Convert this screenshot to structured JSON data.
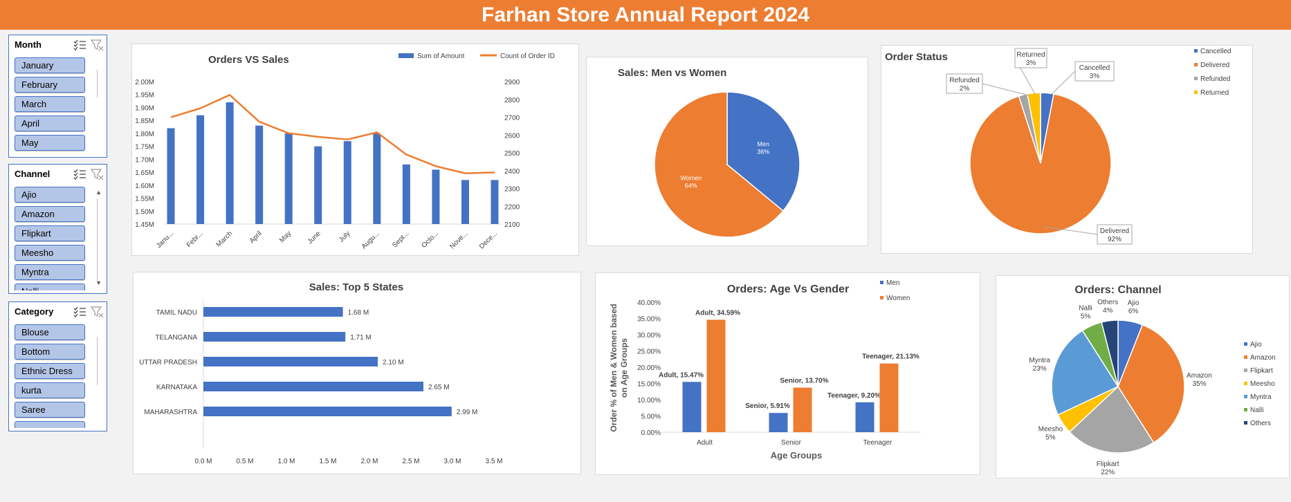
{
  "title": "Farhan Store Annual Report 2024",
  "colors": {
    "accent": "#ed7d31",
    "blue": "#4472c4",
    "gray": "#a5a5a5",
    "yellow": "#ffc000",
    "lightblue": "#5b9bd5",
    "green": "#70ad47",
    "navy": "#264478",
    "slicer_item": "#b4c6e7"
  },
  "slicers": [
    {
      "title": "Month",
      "items": [
        "January",
        "February",
        "March",
        "April",
        "May"
      ]
    },
    {
      "title": "Channel",
      "items": [
        "Ajio",
        "Amazon",
        "Flipkart",
        "Meesho",
        "Myntra",
        "Nalli"
      ]
    },
    {
      "title": "Category",
      "items": [
        "Blouse",
        "Bottom",
        "Ethnic Dress",
        "kurta",
        "Saree",
        ""
      ]
    }
  ],
  "chart_data": [
    {
      "type": "bar+line",
      "title": "Orders VS Sales",
      "categories": [
        "Janu...",
        "Febr...",
        "March",
        "April",
        "May",
        "June",
        "July",
        "Augu...",
        "Sept...",
        "Octo...",
        "Nove...",
        "Dece..."
      ],
      "series": [
        {
          "name": "Sum of Amount",
          "type": "bar",
          "axis": "left",
          "values": [
            1.82,
            1.87,
            1.92,
            1.83,
            1.8,
            1.75,
            1.77,
            1.8,
            1.68,
            1.66,
            1.62,
            1.62
          ]
        },
        {
          "name": "Count of Order ID",
          "type": "line",
          "axis": "right",
          "values": [
            2700,
            2750,
            2825,
            2675,
            2610,
            2590,
            2575,
            2615,
            2490,
            2425,
            2385,
            2390
          ]
        }
      ],
      "left_axis": {
        "ticks": [
          "2.00M",
          "1.95M",
          "1.90M",
          "1.85M",
          "1.80M",
          "1.75M",
          "1.70M",
          "1.65M",
          "1.60M",
          "1.55M",
          "1.50M",
          "1.45M"
        ],
        "range": [
          1.45,
          2.0
        ]
      },
      "right_axis": {
        "ticks": [
          "2900",
          "2800",
          "2700",
          "2600",
          "2500",
          "2400",
          "2300",
          "2200",
          "2100"
        ],
        "range": [
          2100,
          2900
        ]
      },
      "legend": "top-right"
    },
    {
      "type": "pie",
      "title": "Sales: Men vs Women",
      "slices": [
        {
          "name": "Men",
          "value": 36,
          "label": "36%"
        },
        {
          "name": "Women",
          "value": 64,
          "label": "64%"
        }
      ]
    },
    {
      "type": "pie",
      "title": "Order Status",
      "slices": [
        {
          "name": "Cancelled",
          "value": 3,
          "label": "3%"
        },
        {
          "name": "Delivered",
          "value": 92,
          "label": "92%"
        },
        {
          "name": "Refunded",
          "value": 2,
          "label": "2%"
        },
        {
          "name": "Returned",
          "value": 3,
          "label": "3%"
        }
      ],
      "legend": "right"
    },
    {
      "type": "bar",
      "orientation": "horizontal",
      "title": "Sales: Top 5 States",
      "categories": [
        "TAMIL NADU",
        "TELANGANA",
        "UTTAR PRADESH",
        "KARNATAKA",
        "MAHARASHTRA"
      ],
      "values": [
        1.68,
        1.71,
        2.1,
        2.65,
        2.99
      ],
      "data_labels": [
        "1.68 M",
        "1.71 M",
        "2.10 M",
        "2.65 M",
        "2.99 M"
      ],
      "x_ticks": [
        "0.0 M",
        "0.5 M",
        "1.0 M",
        "1.5 M",
        "2.0 M",
        "2.5 M",
        "3.0 M",
        "3.5 M"
      ],
      "xlim": [
        0,
        3.5
      ]
    },
    {
      "type": "bar",
      "title": "Orders: Age Vs Gender",
      "categories": [
        "Adult",
        "Senior",
        "Teenager"
      ],
      "series": [
        {
          "name": "Men",
          "values": [
            15.47,
            5.91,
            9.2
          ],
          "labels": [
            "Adult, 15.47%",
            "Senior, 5.91%",
            "Teenager, 9.20%"
          ]
        },
        {
          "name": "Women",
          "values": [
            34.59,
            13.7,
            21.13
          ],
          "labels": [
            "Adult, 34.59%",
            "Senior, 13.70%",
            "Teenager, 21.13%"
          ]
        }
      ],
      "xlabel": "Age Groups",
      "ylabel": "Order % of Men & Women based on Age Groups",
      "y_ticks": [
        "40.00%",
        "35.00%",
        "30.00%",
        "25.00%",
        "20.00%",
        "15.00%",
        "10.00%",
        "5.00%",
        "0.00%"
      ],
      "ylim": [
        0,
        40
      ],
      "legend": "top-right"
    },
    {
      "type": "pie",
      "title": "Orders: Channel",
      "slices": [
        {
          "name": "Ajio",
          "value": 6,
          "label": "6%"
        },
        {
          "name": "Amazon",
          "value": 35,
          "label": "35%"
        },
        {
          "name": "Flipkart",
          "value": 22,
          "label": "22%"
        },
        {
          "name": "Meesho",
          "value": 5,
          "label": "5%"
        },
        {
          "name": "Myntra",
          "value": 23,
          "label": "23%"
        },
        {
          "name": "Nalli",
          "value": 5,
          "label": "5%"
        },
        {
          "name": "Others",
          "value": 4,
          "label": "4%"
        }
      ],
      "legend": "right"
    }
  ]
}
